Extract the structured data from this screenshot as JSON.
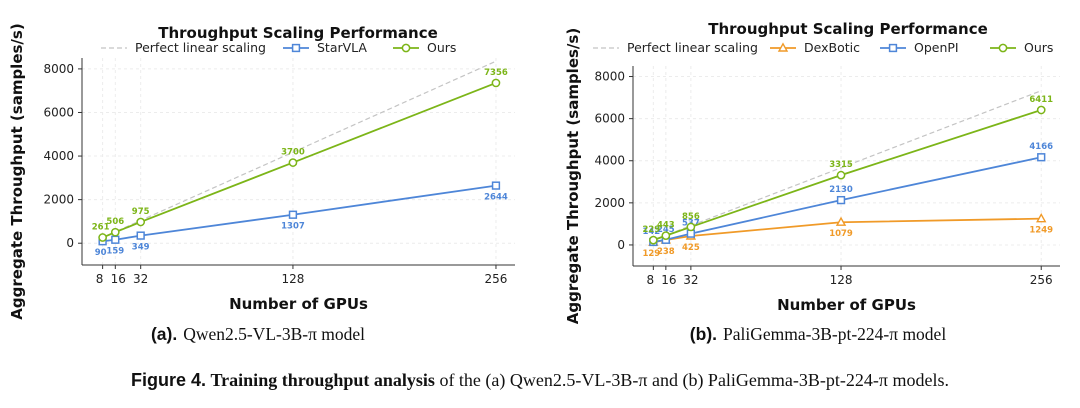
{
  "chart_data": [
    {
      "type": "line",
      "title": "Throughput Scaling Performance",
      "xlabel": "Number of GPUs",
      "ylabel": "Aggregate Throughput (samples/s)",
      "xticks": [
        8,
        16,
        32,
        128,
        256
      ],
      "xtick_labels": [
        "8",
        "16",
        "32",
        "128",
        "256"
      ],
      "yticks": [
        0,
        2000,
        4000,
        6000,
        8000
      ],
      "xlim": [
        -5,
        268
      ],
      "ylim": [
        -1000,
        8500
      ],
      "grid": true,
      "legend_position": "top",
      "reference": {
        "name": "Perfect linear scaling",
        "x": [
          8,
          256
        ],
        "y": [
          261,
          8352
        ],
        "color": "#c4c4c4"
      },
      "series": [
        {
          "name": "StarVLA",
          "color": "#4e86d8",
          "marker": "square",
          "x": [
            8,
            16,
            32,
            128,
            256
          ],
          "values": [
            90,
            159,
            349,
            1307,
            2644
          ],
          "labels": [
            "90",
            "159",
            "349",
            "1307",
            "2644"
          ],
          "label_pos": "below"
        },
        {
          "name": "Ours",
          "color": "#7cb518",
          "marker": "circle",
          "x": [
            8,
            16,
            32,
            128,
            256
          ],
          "values": [
            261,
            506,
            975,
            3700,
            7356
          ],
          "labels": [
            "261",
            "506",
            "975",
            "3700",
            "7356"
          ],
          "label_pos": "above"
        }
      ],
      "caption": {
        "label": "(a).",
        "text": "Qwen2.5-VL-3B-π model"
      }
    },
    {
      "type": "line",
      "title": "Throughput Scaling Performance",
      "xlabel": "Number of GPUs",
      "ylabel": "Aggregate Throughput (samples/s)",
      "xticks": [
        8,
        16,
        32,
        128,
        256
      ],
      "xtick_labels": [
        "8",
        "16",
        "32",
        "128",
        "256"
      ],
      "yticks": [
        0,
        2000,
        4000,
        6000,
        8000
      ],
      "xlim": [
        -5,
        268
      ],
      "ylim": [
        -1000,
        8500
      ],
      "grid": true,
      "legend_position": "top",
      "reference": {
        "name": "Perfect linear scaling",
        "x": [
          8,
          256
        ],
        "y": [
          229,
          7328
        ],
        "color": "#c4c4c4"
      },
      "series": [
        {
          "name": "DexBotic",
          "color": "#f09a28",
          "marker": "triangle",
          "x": [
            8,
            16,
            32,
            128,
            256
          ],
          "values": [
            129,
            238,
            425,
            1079,
            1249
          ],
          "labels": [
            "129",
            "238",
            "425",
            "1079",
            "1249"
          ],
          "label_pos": "below"
        },
        {
          "name": "OpenPI",
          "color": "#4e86d8",
          "marker": "square",
          "x": [
            8,
            16,
            32,
            128,
            256
          ],
          "values": [
            142,
            245,
            537,
            2130,
            4166
          ],
          "labels": [
            "142",
            "245",
            "537",
            "2130",
            "4166"
          ],
          "label_pos": "above"
        },
        {
          "name": "Ours",
          "color": "#7cb518",
          "marker": "circle",
          "x": [
            8,
            16,
            32,
            128,
            256
          ],
          "values": [
            229,
            443,
            856,
            3315,
            6411
          ],
          "labels": [
            "229",
            "443",
            "856",
            "3315",
            "6411"
          ],
          "label_pos": "above"
        }
      ],
      "caption": {
        "label": "(b).",
        "text": "PaliGemma-3B-pt-224-π model"
      }
    }
  ],
  "figure_caption": {
    "label": "Figure 4.",
    "bold": "Training throughput analysis",
    "rest": " of the (a) Qwen2.5-VL-3B-π and (b) PaliGemma-3B-pt-224-π models."
  }
}
